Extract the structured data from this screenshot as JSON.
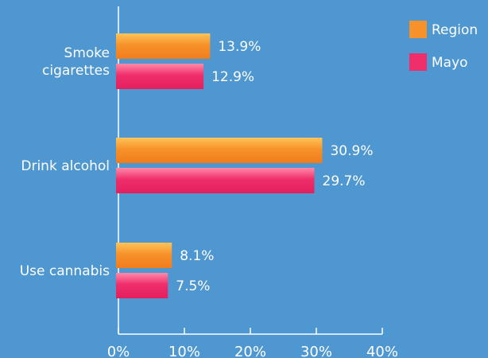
{
  "chart_data": {
    "type": "bar",
    "orientation": "horizontal",
    "categories": [
      "Smoke cigarettes",
      "Drink alcohol",
      "Use cannabis"
    ],
    "category_lines": [
      [
        "Smoke",
        "cigarettes"
      ],
      [
        "Drink alcohol"
      ],
      [
        "Use cannabis"
      ]
    ],
    "series": [
      {
        "name": "Region",
        "values": [
          13.9,
          30.9,
          8.1
        ],
        "color": "#f7922a",
        "labels": [
          "13.9%",
          "30.9%",
          "8.1%"
        ]
      },
      {
        "name": "Mayo",
        "values": [
          12.9,
          29.7,
          7.5
        ],
        "color": "#ef2e6b",
        "labels": [
          "12.9%",
          "29.7%",
          "7.5%"
        ]
      }
    ],
    "xlim": [
      0,
      40
    ],
    "xticks": [
      0,
      10,
      20,
      30,
      40
    ],
    "xtick_labels": [
      "0%",
      "10%",
      "20%",
      "30%",
      "40%"
    ],
    "legend": {
      "position": "top-right",
      "entries": [
        "Region",
        "Mayo"
      ]
    },
    "grid": false,
    "background": "#4f97d0"
  }
}
